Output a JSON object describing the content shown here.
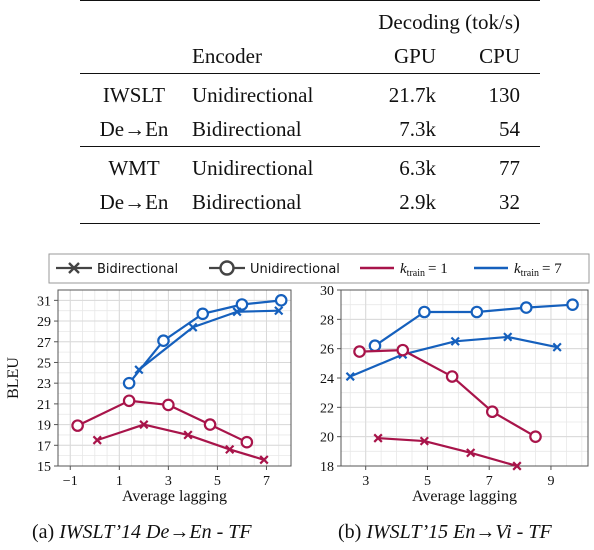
{
  "table": {
    "header_group": "Decoding (tok/s)",
    "col_encoder": "Encoder",
    "col_gpu": "GPU",
    "col_cpu": "CPU",
    "groups": [
      {
        "dataset_line1": "IWSLT",
        "dataset_line2": "De→En",
        "rows": [
          {
            "encoder": "Unidirectional",
            "gpu": "21.7k",
            "cpu": "130"
          },
          {
            "encoder": "Bidirectional",
            "gpu": "7.3k",
            "cpu": "54"
          }
        ]
      },
      {
        "dataset_line1": "WMT",
        "dataset_line2": "De→En",
        "rows": [
          {
            "encoder": "Unidirectional",
            "gpu": "6.3k",
            "cpu": "77"
          },
          {
            "encoder": "Bidirectional",
            "gpu": "2.9k",
            "cpu": "32"
          }
        ]
      }
    ]
  },
  "legend": {
    "bidirectional": "Bidirectional",
    "unidirectional": "Unidirectional",
    "k_label": "k",
    "k_sub": "train",
    "k1_value": "= 1",
    "k7_value": "= 7"
  },
  "colors": {
    "k1": "#a8144a",
    "k7": "#1560bd",
    "grid": "#d9d9d9",
    "axis": "#555555"
  },
  "captions": {
    "a_prefix": "(a) ",
    "a_title": "IWSLT’14 De→En - TF",
    "b_prefix": "(b) ",
    "b_title": "IWSLT’15 En→Vi - TF"
  },
  "chart_data": [
    {
      "type": "line",
      "xlabel": "Average lagging",
      "ylabel": "BLEU",
      "xlim": [
        -1.5,
        8
      ],
      "ylim": [
        15,
        32
      ],
      "xticks": [
        -1,
        1,
        3,
        5,
        7
      ],
      "yticks": [
        15,
        17,
        19,
        21,
        23,
        25,
        27,
        29,
        31
      ],
      "grid": true,
      "series": [
        {
          "encoder": "Unidirectional",
          "k_train": 7,
          "marker": "circle",
          "x": [
            1.4,
            2.8,
            4.4,
            6.0,
            7.6
          ],
          "y": [
            23.0,
            27.1,
            29.7,
            30.6,
            31.0
          ]
        },
        {
          "encoder": "Bidirectional",
          "k_train": 7,
          "marker": "x",
          "x": [
            1.8,
            4.0,
            5.8,
            7.5
          ],
          "y": [
            24.3,
            28.4,
            29.9,
            30.0
          ]
        },
        {
          "encoder": "Unidirectional",
          "k_train": 1,
          "marker": "circle",
          "x": [
            -0.7,
            1.4,
            3.0,
            4.7,
            6.2
          ],
          "y": [
            18.9,
            21.3,
            20.9,
            19.0,
            17.3
          ]
        },
        {
          "encoder": "Bidirectional",
          "k_train": 1,
          "marker": "x",
          "x": [
            0.1,
            2.0,
            3.8,
            5.5,
            6.9
          ],
          "y": [
            17.5,
            19.0,
            18.0,
            16.6,
            15.6
          ]
        }
      ]
    },
    {
      "type": "line",
      "xlabel": "Average lagging",
      "ylabel": "",
      "xlim": [
        2.2,
        10.2
      ],
      "ylim": [
        18,
        30
      ],
      "xticks": [
        3,
        5,
        7,
        9
      ],
      "yticks": [
        18,
        20,
        22,
        24,
        26,
        28,
        30
      ],
      "grid": true,
      "series": [
        {
          "encoder": "Unidirectional",
          "k_train": 7,
          "marker": "circle",
          "x": [
            3.3,
            4.9,
            6.6,
            8.2,
            9.7
          ],
          "y": [
            26.2,
            28.5,
            28.5,
            28.8,
            29.0
          ]
        },
        {
          "encoder": "Bidirectional",
          "k_train": 7,
          "marker": "x",
          "x": [
            2.5,
            4.2,
            5.9,
            7.6,
            9.2
          ],
          "y": [
            24.1,
            25.6,
            26.5,
            26.8,
            26.1
          ]
        },
        {
          "encoder": "Unidirectional",
          "k_train": 1,
          "marker": "circle",
          "x": [
            2.8,
            4.2,
            5.8,
            7.1,
            8.5
          ],
          "y": [
            25.8,
            25.9,
            24.1,
            21.7,
            20.0
          ]
        },
        {
          "encoder": "Bidirectional",
          "k_train": 1,
          "marker": "x",
          "x": [
            3.4,
            4.9,
            6.4,
            7.9
          ],
          "y": [
            19.9,
            19.7,
            18.9,
            18.0
          ]
        }
      ]
    }
  ]
}
